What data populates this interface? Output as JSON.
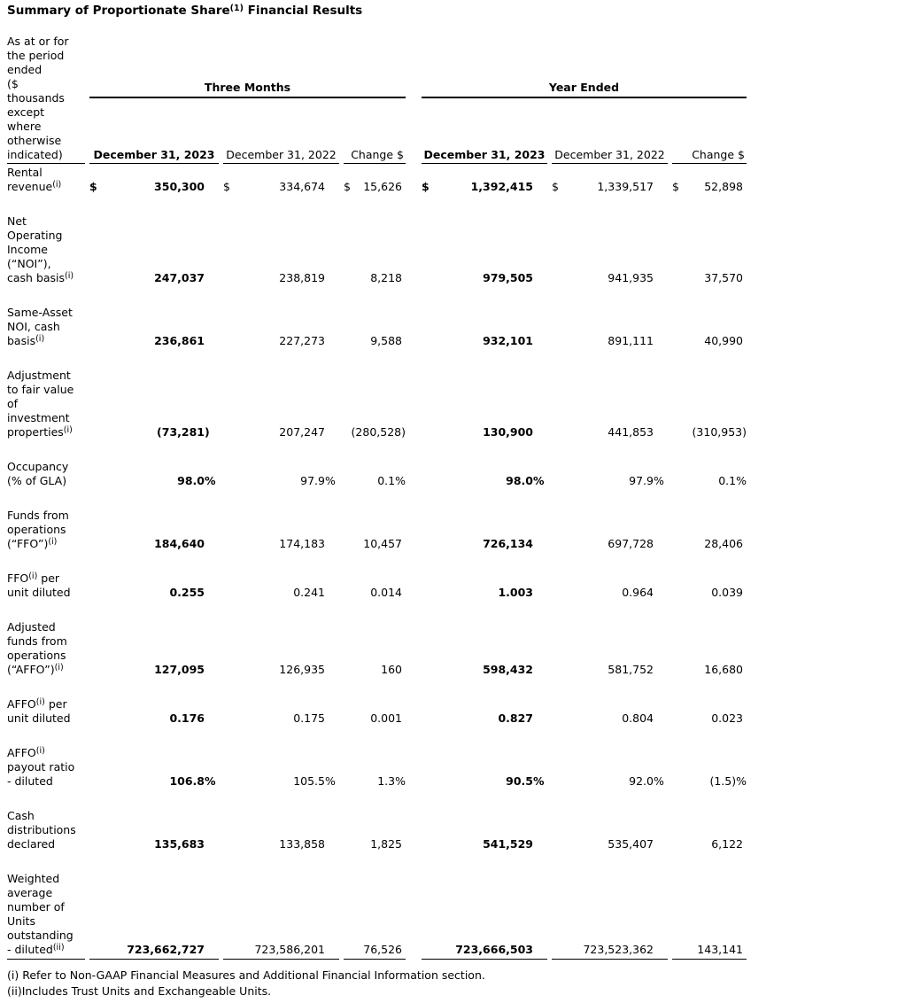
{
  "title": {
    "segments": [
      {
        "t": "Summary of Proportionate Share"
      },
      {
        "sup": "(1)"
      },
      {
        "t": " Financial Results"
      }
    ]
  },
  "table": {
    "corner_label": "As at or for\nthe period\nended\n($\nthousands\nexcept\nwhere\notherwise\nindicated)",
    "currency": "$",
    "group_headers": [
      "Three Months",
      "Year Ended"
    ],
    "columns": [
      "December 31, 2023",
      "December 31, 2022",
      "Change $",
      "December 31, 2023",
      "December 31, 2022",
      "Change $"
    ],
    "rows": [
      {
        "label": [
          {
            "t": "Rental\nrevenue"
          },
          {
            "sup": "(i)"
          }
        ],
        "dollar": true,
        "values": [
          "350,300",
          "334,674",
          "15,626",
          "1,392,415",
          "1,339,517",
          "52,898"
        ]
      },
      {
        "label": [
          {
            "t": "Net\nOperating\nIncome\n(“NOI”),\ncash basis"
          },
          {
            "sup": "(i)"
          }
        ],
        "values": [
          "247,037",
          "238,819",
          "8,218",
          "979,505",
          "941,935",
          "37,570"
        ]
      },
      {
        "label": [
          {
            "t": "Same-Asset\nNOI, cash\nbasis"
          },
          {
            "sup": "(i)"
          }
        ],
        "values": [
          "236,861",
          "227,273",
          "9,588",
          "932,101",
          "891,111",
          "40,990"
        ]
      },
      {
        "label": [
          {
            "t": "Adjustment\nto fair value\nof\ninvestment\nproperties"
          },
          {
            "sup": "(i)"
          }
        ],
        "values": [
          "(73,281)",
          "207,247",
          "(280,528)",
          "130,900",
          "441,853",
          "(310,953)"
        ]
      },
      {
        "label": [
          {
            "t": "Occupancy\n(% of GLA)"
          }
        ],
        "values": [
          "98.0%",
          "97.9%",
          "0.1%",
          "98.0%",
          "97.9%",
          "0.1%"
        ]
      },
      {
        "label": [
          {
            "t": "Funds from\noperations\n(“FFO”)"
          },
          {
            "sup": "(i)"
          }
        ],
        "values": [
          "184,640",
          "174,183",
          "10,457",
          "726,134",
          "697,728",
          "28,406"
        ]
      },
      {
        "label": [
          {
            "t": "FFO"
          },
          {
            "sup": "(i)"
          },
          {
            "t": " per\nunit diluted"
          }
        ],
        "values": [
          "0.255",
          "0.241",
          "0.014",
          "1.003",
          "0.964",
          "0.039"
        ]
      },
      {
        "label": [
          {
            "t": "Adjusted\nfunds from\noperations\n(“AFFO”)"
          },
          {
            "sup": "(i)"
          }
        ],
        "values": [
          "127,095",
          "126,935",
          "160",
          "598,432",
          "581,752",
          "16,680"
        ]
      },
      {
        "label": [
          {
            "t": "AFFO"
          },
          {
            "sup": "(i)"
          },
          {
            "t": " per\nunit diluted"
          }
        ],
        "values": [
          "0.176",
          "0.175",
          "0.001",
          "0.827",
          "0.804",
          "0.023"
        ]
      },
      {
        "label": [
          {
            "t": "AFFO"
          },
          {
            "sup": "(i)"
          },
          {
            "t": "\npayout ratio\n- diluted"
          }
        ],
        "values": [
          "106.8%",
          "105.5%",
          "1.3%",
          "90.5%",
          "92.0%",
          "(1.5)%"
        ]
      },
      {
        "label": [
          {
            "t": "Cash\ndistributions\ndeclared"
          }
        ],
        "values": [
          "135,683",
          "133,858",
          "1,825",
          "541,529",
          "535,407",
          "6,122"
        ]
      },
      {
        "label": [
          {
            "t": "Weighted\naverage\nnumber of\nUnits\noutstanding\n- diluted"
          },
          {
            "sup": "(ii)"
          }
        ],
        "values": [
          "723,662,727",
          "723,586,201",
          "76,526",
          "723,666,503",
          "723,523,362",
          "143,141"
        ]
      }
    ]
  },
  "footnotes": [
    "(i) Refer to Non-GAAP Financial Measures and Additional Financial Information section.",
    "(ii)Includes Trust Units and Exchangeable Units."
  ]
}
